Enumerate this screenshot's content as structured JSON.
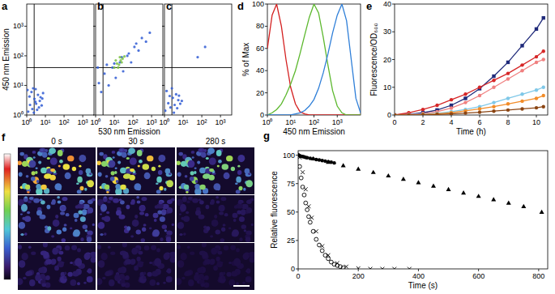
{
  "chart_data": [
    {
      "type": "scatter",
      "title": "a",
      "ylabel": "450 nm Emission",
      "log": true,
      "xlim": [
        1,
        4000
      ],
      "ylim": [
        1,
        5600
      ],
      "xticks": [
        {
          "value": 1,
          "label": "10⁰"
        },
        {
          "value": 10,
          "label": "10¹"
        },
        {
          "value": 100,
          "label": "10²"
        },
        {
          "value": 1000,
          "label": "10³"
        }
      ],
      "yticks": [
        {
          "value": 1,
          "label": "10⁰"
        },
        {
          "value": 10,
          "label": "10¹"
        },
        {
          "value": 100,
          "label": "10²"
        },
        {
          "value": 1000,
          "label": "10³"
        }
      ],
      "gates": {
        "x": 2.5,
        "y": 40
      },
      "series": [
        {
          "color": "#2f5bd3",
          "marker": "dot",
          "x": [
            1.2,
            1.5,
            2,
            2.6,
            3.2,
            4,
            5,
            6.3,
            7.5,
            1.8,
            2.4,
            3,
            4.5,
            5.5,
            1.4,
            2.2,
            3.6,
            6.8,
            1.1,
            2.9
          ],
          "values": [
            1.3,
            2.2,
            1.6,
            3.5,
            2.4,
            4.8,
            3,
            2.1,
            5.5,
            6,
            1.2,
            7.5,
            1.8,
            4,
            4.2,
            8,
            1.5,
            3.6,
            7,
            2.8
          ]
        }
      ]
    },
    {
      "type": "scatter",
      "title": "b",
      "xlabel": "530 nm Emission",
      "log": true,
      "xlim": [
        1,
        4000
      ],
      "ylim": [
        1,
        5600
      ],
      "tick_labels": "x",
      "xticks": [
        {
          "value": 1,
          "label": "10⁰"
        },
        {
          "value": 10,
          "label": "10¹"
        },
        {
          "value": 100,
          "label": "10²"
        },
        {
          "value": 1000,
          "label": "10³"
        }
      ],
      "yticks": [
        {
          "value": 1,
          "label": "10⁰"
        },
        {
          "value": 10,
          "label": "10¹"
        },
        {
          "value": 100,
          "label": "10²"
        },
        {
          "value": 1000,
          "label": "10³"
        }
      ],
      "gates": {
        "x": 2.5,
        "y": 40
      },
      "series": [
        {
          "color": "#2f5bd3",
          "marker": "dot",
          "x": [
            1.5,
            2,
            3,
            5,
            8,
            12,
            20,
            30,
            50,
            80,
            120,
            200,
            300,
            500,
            800,
            1.3,
            4,
            10,
            25,
            60,
            150
          ],
          "values": [
            12,
            6,
            25,
            10,
            40,
            18,
            60,
            30,
            100,
            60,
            200,
            150,
            400,
            300,
            600,
            40,
            50,
            55,
            90,
            120,
            260
          ]
        },
        {
          "color": "#7ac143",
          "marker": "dot",
          "x": [
            10,
            14,
            18,
            22,
            28,
            35,
            12,
            16,
            25,
            20
          ],
          "values": [
            40,
            55,
            50,
            70,
            80,
            95,
            70,
            40,
            60,
            90
          ]
        }
      ]
    },
    {
      "type": "scatter",
      "title": "c",
      "log": true,
      "xlim": [
        1,
        4000
      ],
      "ylim": [
        1,
        5600
      ],
      "tick_labels": "x",
      "xticks": [
        {
          "value": 1,
          "label": "10⁰"
        },
        {
          "value": 10,
          "label": "10¹"
        },
        {
          "value": 100,
          "label": "10²"
        },
        {
          "value": 1000,
          "label": "10³"
        }
      ],
      "yticks": [
        {
          "value": 1,
          "label": "10⁰"
        },
        {
          "value": 10,
          "label": "10¹"
        },
        {
          "value": 100,
          "label": "10²"
        },
        {
          "value": 1000,
          "label": "10³"
        }
      ],
      "gates": {
        "x": 2.5,
        "y": 40
      },
      "series": [
        {
          "color": "#2f5bd3",
          "marker": "dot",
          "x": [
            1.1,
            1.6,
            2.1,
            2.8,
            3.5,
            4.2,
            5.5,
            7,
            1.3,
            2.5,
            3.2,
            4.8,
            6,
            1.9,
            8.5,
            60,
            150
          ],
          "values": [
            1.4,
            2.5,
            1.8,
            3.8,
            2.2,
            5,
            3.2,
            2.4,
            6.5,
            8,
            1.2,
            1.7,
            4.5,
            4.4,
            3,
            90,
            200
          ]
        }
      ]
    },
    {
      "type": "line",
      "title": "d",
      "xlabel": "450 nm Emission",
      "ylabel": "% of Max",
      "log": "x",
      "xlim": [
        1,
        10000
      ],
      "ylim": [
        0,
        100
      ],
      "xticks": [
        {
          "value": 1,
          "label": "10⁰"
        },
        {
          "value": 10,
          "label": "10¹"
        },
        {
          "value": 100,
          "label": "10²"
        },
        {
          "value": 1000,
          "label": "10³"
        }
      ],
      "yticks": [
        0,
        20,
        40,
        60,
        80,
        100
      ],
      "x": [
        1,
        1.6,
        2.5,
        4,
        6.3,
        10,
        16,
        25,
        40,
        63,
        100,
        158,
        251,
        398,
        631,
        1000,
        1585,
        2512,
        3981,
        6310,
        10000
      ],
      "series": [
        {
          "color": "#d42020",
          "values": [
            60,
            90,
            100,
            80,
            50,
            25,
            10,
            3,
            1,
            0,
            0,
            0,
            0,
            0,
            0,
            0,
            0,
            0,
            0,
            0,
            0
          ]
        },
        {
          "color": "#5cb82e",
          "values": [
            0,
            2,
            5,
            10,
            18,
            28,
            40,
            55,
            72,
            88,
            100,
            92,
            70,
            45,
            22,
            8,
            2,
            0,
            0,
            0,
            0
          ]
        },
        {
          "color": "#2f7fd8",
          "values": [
            0,
            0,
            0,
            0,
            0,
            0,
            1,
            2,
            4,
            8,
            14,
            24,
            38,
            55,
            74,
            90,
            100,
            85,
            50,
            15,
            2
          ]
        }
      ]
    },
    {
      "type": "line",
      "title": "e",
      "xlabel": "Time (h)",
      "ylabel": "Fluorescence/OD₆₀₀",
      "xlim": [
        0,
        10.8
      ],
      "ylim": [
        0,
        40
      ],
      "xticks": [
        0,
        2,
        4,
        6,
        8,
        10
      ],
      "yticks": [
        0,
        10,
        20,
        30,
        40
      ],
      "x": [
        0,
        1,
        2,
        3,
        4,
        5,
        6,
        7,
        8,
        9,
        10,
        10.5
      ],
      "series": [
        {
          "color": "#1f2a7a",
          "marker": "square",
          "values": [
            0,
            0.3,
            0.8,
            1.8,
            3.5,
            6,
            9.5,
            14,
            19,
            25,
            31,
            35
          ]
        },
        {
          "color": "#d62728",
          "marker": "circle",
          "values": [
            0,
            0.8,
            2,
            3.5,
            5.5,
            7.5,
            10,
            12.5,
            15,
            18,
            21,
            23
          ]
        },
        {
          "color": "#f08080",
          "marker": "circle",
          "values": [
            0,
            0.2,
            0.5,
            1.2,
            2.5,
            4.5,
            7,
            10,
            13,
            16,
            19,
            20
          ]
        },
        {
          "color": "#7fc8e8",
          "marker": "circle",
          "values": [
            0,
            0.1,
            0.3,
            0.6,
            1.2,
            2,
            3,
            4.5,
            6,
            7.5,
            9,
            10
          ]
        },
        {
          "color": "#f28c28",
          "marker": "circle",
          "values": [
            0,
            0,
            0.2,
            0.4,
            0.8,
            1.5,
            2.2,
            3,
            4,
            5,
            6,
            7
          ]
        },
        {
          "color": "#8b4513",
          "marker": "circle",
          "values": [
            0,
            0,
            0.1,
            0.2,
            0.4,
            0.7,
            1,
            1.4,
            1.8,
            2.2,
            2.6,
            3
          ]
        }
      ]
    },
    {
      "type": "scatter",
      "title": "g",
      "xlabel": "Time (s)",
      "ylabel": "Relative fluorescence",
      "xlim": [
        0,
        830
      ],
      "ylim": [
        0,
        104
      ],
      "xticks": [
        0,
        200,
        400,
        600,
        800
      ],
      "yticks": [
        0,
        25,
        50,
        75,
        100
      ],
      "series": [
        {
          "color": "#000000",
          "marker": "circle",
          "x": [
            0,
            5,
            10,
            15,
            20,
            25,
            30,
            40,
            50,
            60,
            70,
            80,
            90,
            100,
            110,
            120
          ],
          "values": [
            100,
            99.5,
            99,
            98.8,
            98.5,
            98,
            97.8,
            97.2,
            96.8,
            96.2,
            95.8,
            95.3,
            94.8,
            94.3,
            93.8,
            93.2
          ]
        },
        {
          "color": "#000000",
          "marker": "triangle",
          "x": [
            0,
            50,
            100,
            150,
            200,
            250,
            300,
            350,
            400,
            450,
            500,
            550,
            600,
            650,
            700,
            750,
            810
          ],
          "values": [
            100,
            97,
            94,
            91,
            88,
            85,
            82,
            79,
            76,
            73,
            70,
            67,
            64,
            61,
            58,
            55,
            50
          ]
        },
        {
          "color": "#000000",
          "marker": "open-circle",
          "x": [
            0,
            5,
            10,
            15,
            20,
            25,
            30,
            35,
            40,
            50,
            60,
            70,
            80,
            90,
            100,
            110,
            120,
            130,
            140,
            150
          ],
          "values": [
            100,
            90,
            80,
            72,
            65,
            58,
            52,
            46,
            41,
            33,
            26,
            21,
            16,
            12,
            9,
            6,
            4,
            3,
            2,
            1
          ]
        },
        {
          "color": "#000000",
          "marker": "x",
          "x": [
            5,
            15,
            25,
            35,
            45,
            60,
            80,
            100,
            130,
            160,
            200,
            240,
            280,
            320,
            370
          ],
          "values": [
            98,
            85,
            70,
            55,
            45,
            33,
            20,
            12,
            5,
            2,
            0.5,
            0,
            0,
            0,
            0
          ]
        }
      ]
    }
  ],
  "image_panel": {
    "title": "f",
    "column_labels": [
      "0 s",
      "30 s",
      "280 s"
    ]
  }
}
